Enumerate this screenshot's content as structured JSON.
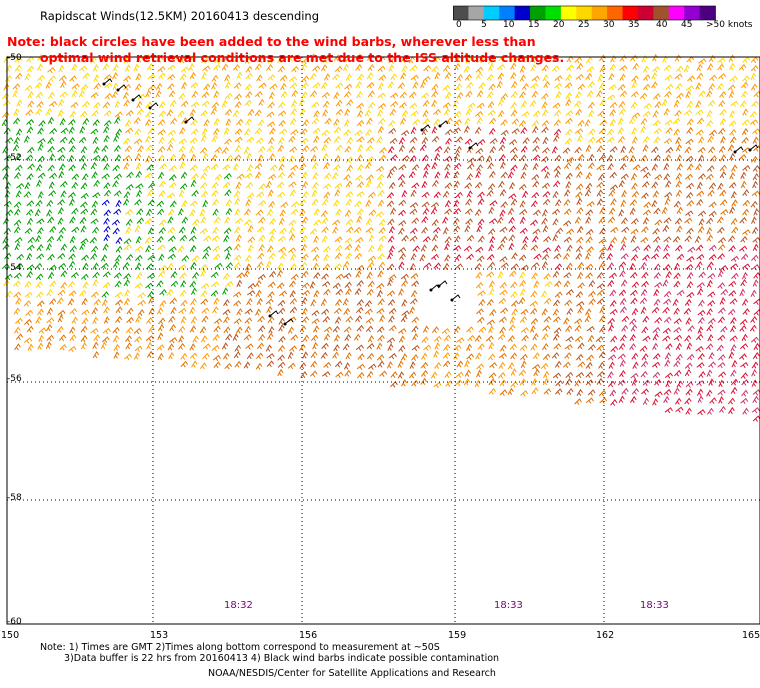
{
  "title": "Rapidscat Winds(12.5KM) 20160413 descending",
  "note_lines": [
    "Note: black circles have been added to the wind barbs, wherever less than",
    "optimal wind retrieval conditions are met due to the ISS altitude changes."
  ],
  "colorbar": {
    "labels": [
      "0",
      "5",
      "10",
      "15",
      "20",
      "25",
      "30",
      "35",
      "40",
      "45",
      ">50 knots"
    ],
    "colors": [
      "#4d4d4d",
      "#a6a6a6",
      "#00ccff",
      "#0080ff",
      "#0000cc",
      "#00a000",
      "#00e000",
      "#ffff00",
      "#ffd700",
      "#ffa500",
      "#ff6600",
      "#ff0000",
      "#cc0033",
      "#a0522d",
      "#ff00ff",
      "#9400d3",
      "#4b0082"
    ]
  },
  "lat_labels": [
    "-50",
    "-52",
    "-54",
    "-56",
    "-58",
    "-60"
  ],
  "lon_labels": [
    "150",
    "153",
    "156",
    "159",
    "162",
    "165"
  ],
  "times": [
    "18:32",
    "18:33",
    "18:33"
  ],
  "footer": {
    "line1": "Note: 1) Times are GMT 2)Times along bottom correspond to measurement at ~50S",
    "line2": "3)Data buffer is 22 hrs from 20160413 4) Black wind barbs indicate possible contamination",
    "line3": "NOAA/NESDIS/Center for Satellite Applications and Research"
  },
  "speed_colors": {
    "green": "#00a000",
    "blue": "#0000cc",
    "yellow": "#ffd700",
    "orange": "#ff9900",
    "darkorange": "#e07000",
    "brown": "#b8521e",
    "red": "#dd1133",
    "magenta": "#cc3366",
    "black": "#000000"
  }
}
